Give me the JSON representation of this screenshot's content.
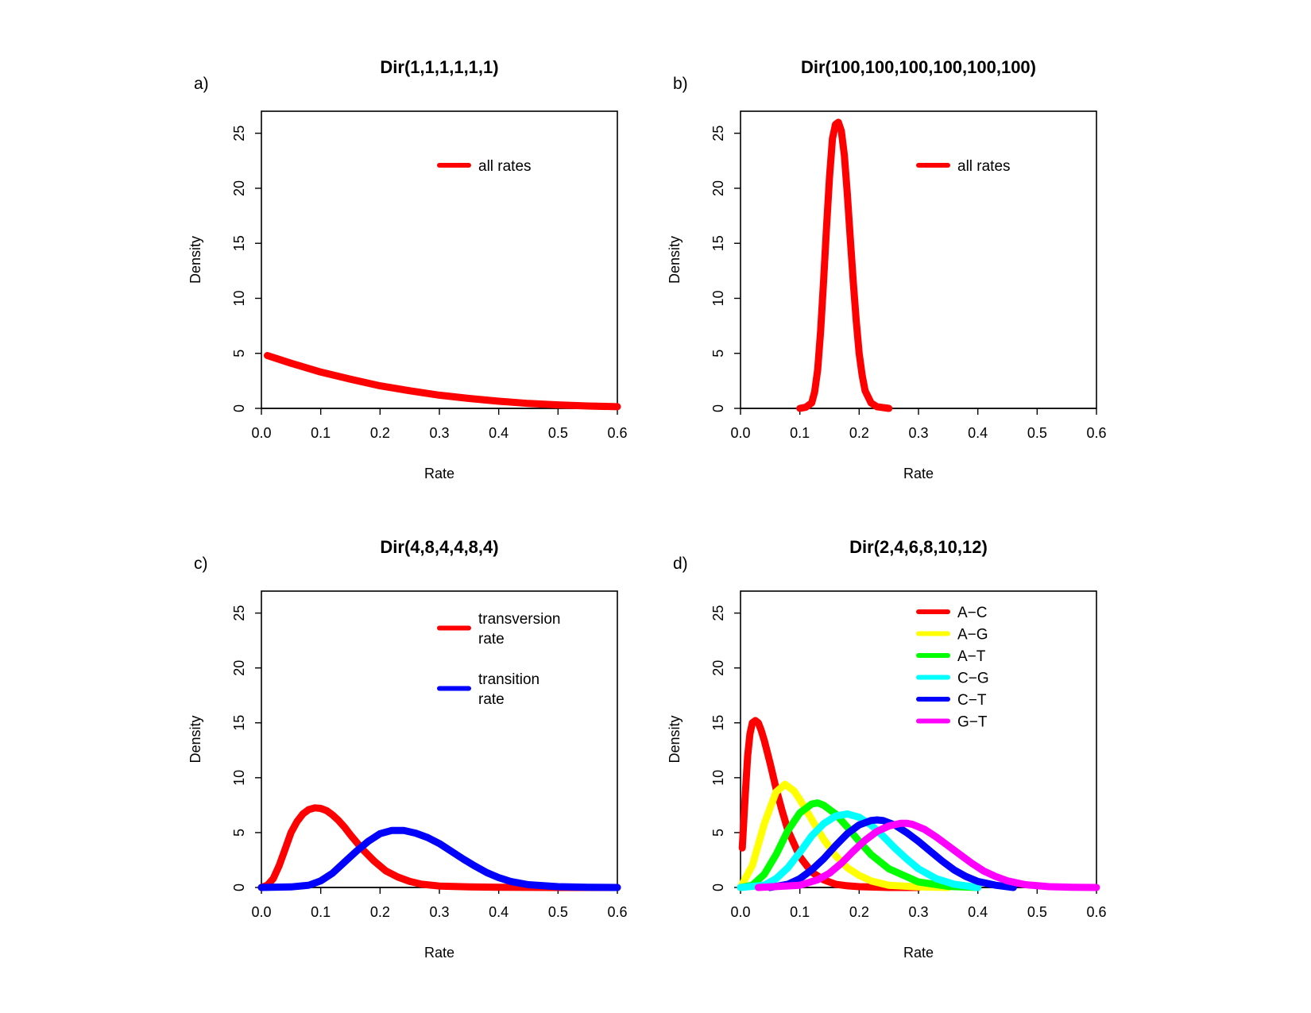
{
  "chart_data": [
    {
      "type": "line",
      "panel_label": "a)",
      "title": "Dir(1,1,1,1,1,1)",
      "xlabel": "Rate",
      "ylabel": "Density",
      "xlim": [
        0,
        0.6
      ],
      "ylim": [
        0,
        27
      ],
      "xticks": [
        "0.0",
        "0.1",
        "0.2",
        "0.3",
        "0.4",
        "0.5",
        "0.6"
      ],
      "yticks": [
        "0",
        "5",
        "10",
        "15",
        "20",
        "25"
      ],
      "legend_position": "top-right",
      "series": [
        {
          "name": "all rates",
          "color": "#ff0000",
          "x": [
            0.01,
            0.05,
            0.1,
            0.15,
            0.2,
            0.25,
            0.3,
            0.35,
            0.4,
            0.45,
            0.5,
            0.55,
            0.6
          ],
          "y": [
            4.8,
            4.1,
            3.3,
            2.65,
            2.05,
            1.6,
            1.2,
            0.9,
            0.65,
            0.45,
            0.32,
            0.22,
            0.15
          ]
        }
      ]
    },
    {
      "type": "line",
      "panel_label": "b)",
      "title": "Dir(100,100,100,100,100,100)",
      "xlabel": "Rate",
      "ylabel": "Density",
      "xlim": [
        0,
        0.6
      ],
      "ylim": [
        0,
        27
      ],
      "xticks": [
        "0.0",
        "0.1",
        "0.2",
        "0.3",
        "0.4",
        "0.5",
        "0.6"
      ],
      "yticks": [
        "0",
        "5",
        "10",
        "15",
        "20",
        "25"
      ],
      "legend_position": "top-right",
      "series": [
        {
          "name": "all rates",
          "color": "#ff0000",
          "x": [
            0.1,
            0.11,
            0.12,
            0.125,
            0.13,
            0.135,
            0.14,
            0.145,
            0.15,
            0.155,
            0.16,
            0.165,
            0.17,
            0.175,
            0.18,
            0.185,
            0.19,
            0.195,
            0.2,
            0.205,
            0.21,
            0.22,
            0.23,
            0.25
          ],
          "y": [
            0,
            0.1,
            0.5,
            1.5,
            3.5,
            7,
            11.5,
            16.5,
            21,
            24.5,
            25.8,
            26,
            25.2,
            23,
            19.5,
            15.5,
            11.5,
            8,
            5,
            3,
            1.6,
            0.5,
            0.15,
            0
          ]
        }
      ]
    },
    {
      "type": "line",
      "panel_label": "c)",
      "title": "Dir(4,8,4,4,8,4)",
      "xlabel": "Rate",
      "ylabel": "Density",
      "xlim": [
        0,
        0.6
      ],
      "ylim": [
        0,
        27
      ],
      "xticks": [
        "0.0",
        "0.1",
        "0.2",
        "0.3",
        "0.4",
        "0.5",
        "0.6"
      ],
      "yticks": [
        "0",
        "5",
        "10",
        "15",
        "20",
        "25"
      ],
      "legend_position": "top-right",
      "series": [
        {
          "name": "transversion rate",
          "label_lines": [
            "transversion",
            "rate"
          ],
          "color": "#ff0000",
          "x": [
            0.0,
            0.01,
            0.02,
            0.03,
            0.04,
            0.05,
            0.06,
            0.07,
            0.08,
            0.09,
            0.1,
            0.11,
            0.12,
            0.13,
            0.14,
            0.15,
            0.17,
            0.19,
            0.21,
            0.23,
            0.25,
            0.27,
            0.3,
            0.35,
            0.4,
            0.5,
            0.6
          ],
          "y": [
            0,
            0.2,
            0.8,
            2,
            3.5,
            5,
            6,
            6.7,
            7.1,
            7.25,
            7.2,
            7,
            6.6,
            6.1,
            5.5,
            4.8,
            3.5,
            2.4,
            1.5,
            0.95,
            0.55,
            0.3,
            0.13,
            0.05,
            0.02,
            0,
            0
          ]
        },
        {
          "name": "transition rate",
          "label_lines": [
            "transition",
            "rate"
          ],
          "color": "#0000ff",
          "x": [
            0.0,
            0.05,
            0.08,
            0.1,
            0.12,
            0.14,
            0.16,
            0.18,
            0.2,
            0.22,
            0.24,
            0.26,
            0.28,
            0.3,
            0.32,
            0.34,
            0.36,
            0.38,
            0.4,
            0.42,
            0.45,
            0.5,
            0.55,
            0.6
          ],
          "y": [
            0,
            0.05,
            0.2,
            0.6,
            1.3,
            2.3,
            3.3,
            4.2,
            4.9,
            5.2,
            5.2,
            4.95,
            4.55,
            4,
            3.3,
            2.6,
            1.95,
            1.35,
            0.9,
            0.55,
            0.25,
            0.07,
            0.02,
            0
          ]
        }
      ]
    },
    {
      "type": "line",
      "panel_label": "d)",
      "title": "Dir(2,4,6,8,10,12)",
      "xlabel": "Rate",
      "ylabel": "Density",
      "xlim": [
        0,
        0.6
      ],
      "ylim": [
        0,
        27
      ],
      "xticks": [
        "0.0",
        "0.1",
        "0.2",
        "0.3",
        "0.4",
        "0.5",
        "0.6"
      ],
      "yticks": [
        "0",
        "5",
        "10",
        "15",
        "20",
        "25"
      ],
      "legend_position": "top-right",
      "series": [
        {
          "name": "A−C",
          "color": "#ff0000",
          "x": [
            0.003,
            0.008,
            0.012,
            0.016,
            0.02,
            0.025,
            0.03,
            0.035,
            0.04,
            0.05,
            0.06,
            0.07,
            0.08,
            0.1,
            0.12,
            0.14,
            0.16,
            0.18,
            0.2,
            0.25,
            0.3
          ],
          "y": [
            3.6,
            8.5,
            12,
            14,
            15,
            15.2,
            15,
            14.3,
            13.4,
            11.3,
            9,
            7,
            5.2,
            2.8,
            1.4,
            0.7,
            0.3,
            0.15,
            0.07,
            0,
            0
          ]
        },
        {
          "name": "A−G",
          "color": "#ffff00",
          "x": [
            0.0,
            0.02,
            0.04,
            0.06,
            0.075,
            0.09,
            0.1,
            0.12,
            0.14,
            0.16,
            0.18,
            0.2,
            0.22,
            0.25,
            0.3,
            0.35
          ],
          "y": [
            0,
            2,
            5.8,
            8.7,
            9.4,
            8.8,
            8,
            6.2,
            4.4,
            2.9,
            1.8,
            1.1,
            0.6,
            0.2,
            0.05,
            0
          ]
        },
        {
          "name": "A−T",
          "color": "#00ff00",
          "x": [
            0.0,
            0.02,
            0.04,
            0.06,
            0.08,
            0.1,
            0.12,
            0.13,
            0.14,
            0.16,
            0.18,
            0.2,
            0.22,
            0.25,
            0.3,
            0.35,
            0.4
          ],
          "y": [
            0,
            0.2,
            1.2,
            3,
            5.2,
            6.8,
            7.6,
            7.7,
            7.5,
            6.7,
            5.5,
            4.2,
            3,
            1.7,
            0.5,
            0.1,
            0
          ]
        },
        {
          "name": "C−G",
          "color": "#00ffff",
          "x": [
            0.0,
            0.04,
            0.06,
            0.08,
            0.1,
            0.12,
            0.14,
            0.16,
            0.18,
            0.2,
            0.22,
            0.24,
            0.26,
            0.28,
            0.3,
            0.33,
            0.36,
            0.4
          ],
          "y": [
            0,
            0.2,
            0.8,
            1.8,
            3.2,
            4.7,
            5.8,
            6.5,
            6.7,
            6.4,
            5.7,
            4.7,
            3.6,
            2.6,
            1.7,
            0.8,
            0.3,
            0
          ]
        },
        {
          "name": "C−T",
          "color": "#0000ff",
          "x": [
            0.05,
            0.08,
            0.1,
            0.12,
            0.14,
            0.16,
            0.18,
            0.2,
            0.22,
            0.23,
            0.24,
            0.26,
            0.28,
            0.3,
            0.32,
            0.34,
            0.36,
            0.38,
            0.4,
            0.43,
            0.46
          ],
          "y": [
            0,
            0.3,
            0.8,
            1.6,
            2.6,
            3.8,
            4.9,
            5.7,
            6.1,
            6.15,
            6.1,
            5.7,
            5,
            4.2,
            3.3,
            2.4,
            1.6,
            1,
            0.55,
            0.2,
            0
          ]
        },
        {
          "name": "G−T",
          "color": "#ff00ff",
          "x": [
            0.03,
            0.1,
            0.13,
            0.15,
            0.17,
            0.19,
            0.21,
            0.23,
            0.25,
            0.27,
            0.28,
            0.29,
            0.31,
            0.33,
            0.35,
            0.37,
            0.39,
            0.41,
            0.43,
            0.45,
            0.48,
            0.52,
            0.56,
            0.6
          ],
          "y": [
            0,
            0.2,
            0.7,
            1.3,
            2.2,
            3.3,
            4.3,
            5.1,
            5.6,
            5.85,
            5.85,
            5.75,
            5.3,
            4.6,
            3.8,
            3,
            2.2,
            1.5,
            1,
            0.6,
            0.25,
            0.07,
            0.02,
            0
          ]
        }
      ]
    }
  ]
}
